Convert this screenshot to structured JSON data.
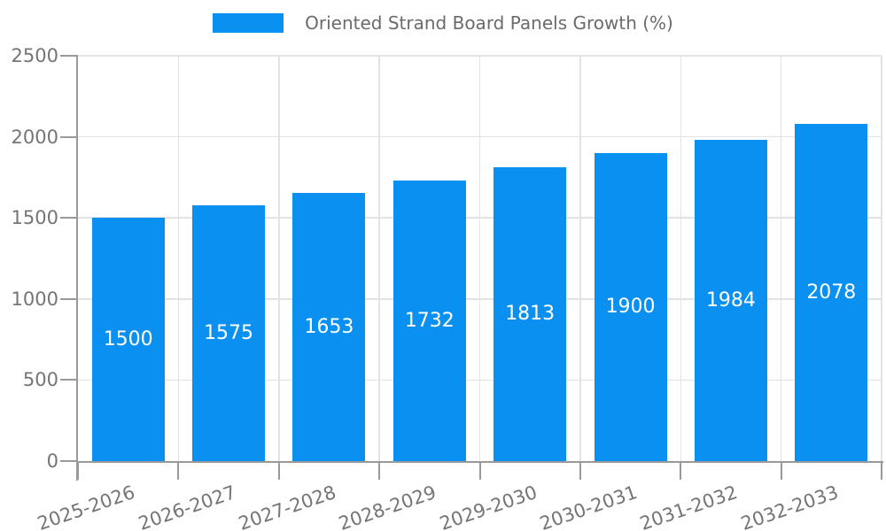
{
  "chart_data": {
    "type": "bar",
    "title": "",
    "legend": {
      "label": "Oriented Strand Board Panels Growth (%)",
      "position": "top"
    },
    "categories": [
      "2025-2026",
      "2026-2027",
      "2027-2028",
      "2028-2029",
      "2029-2030",
      "2030-2031",
      "2031-2032",
      "2032-2033"
    ],
    "series": [
      {
        "name": "Oriented Strand Board Panels Growth (%)",
        "values": [
          1500,
          1575,
          1653,
          1732,
          1813,
          1900,
          1984,
          2078
        ]
      }
    ],
    "ylim": [
      0,
      2500
    ],
    "yticks": [
      0,
      500,
      1000,
      1500,
      2000,
      2500
    ],
    "grid": true,
    "colors": {
      "bar": "#0a90f1",
      "axis": "#999999",
      "grid": "#e3e3e3",
      "tick_text": "#757575",
      "legend_text": "#6b6b6b",
      "bar_label": "#ffffff",
      "background": "#ffffff"
    }
  }
}
